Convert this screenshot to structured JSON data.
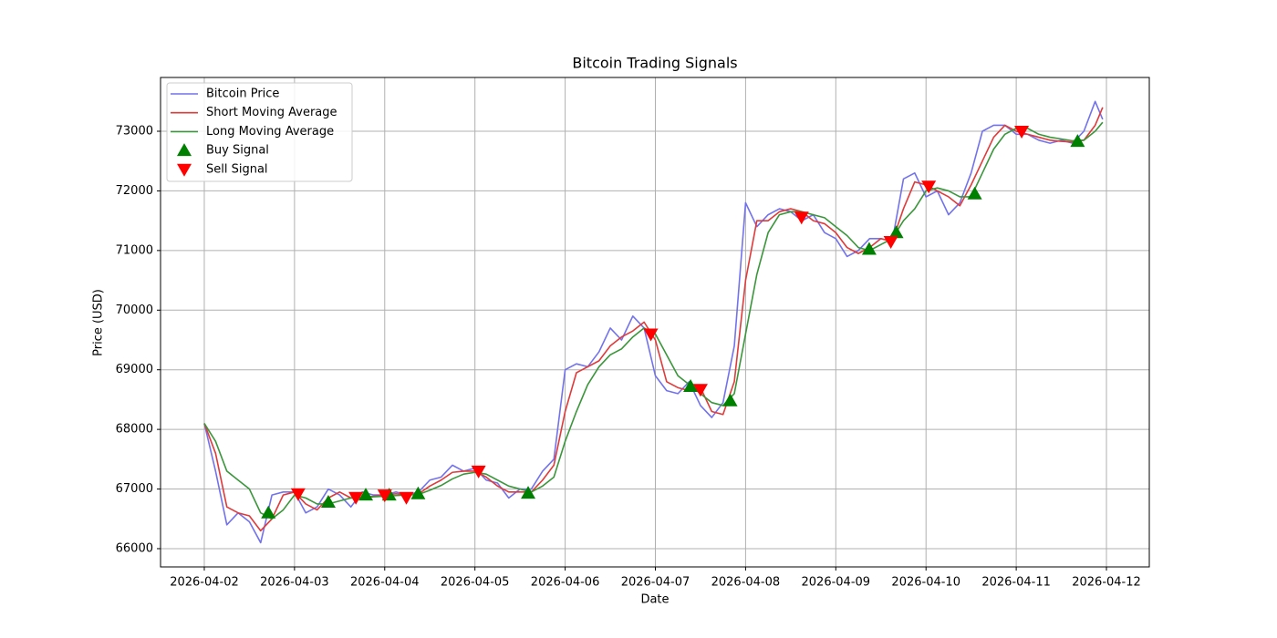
{
  "chart_data": {
    "type": "line",
    "title": "Bitcoin Trading Signals",
    "x_label": "Date",
    "y_label": "Price (USD)",
    "x": [
      0,
      0.125,
      0.25,
      0.375,
      0.5,
      0.625,
      0.75,
      0.875,
      1,
      1.125,
      1.25,
      1.375,
      1.5,
      1.625,
      1.75,
      1.875,
      2,
      2.125,
      2.25,
      2.375,
      2.5,
      2.625,
      2.75,
      2.875,
      3,
      3.125,
      3.25,
      3.375,
      3.5,
      3.625,
      3.75,
      3.875,
      4,
      4.125,
      4.25,
      4.375,
      4.5,
      4.625,
      4.75,
      4.875,
      5,
      5.125,
      5.25,
      5.375,
      5.5,
      5.625,
      5.75,
      5.875,
      6,
      6.125,
      6.25,
      6.375,
      6.5,
      6.625,
      6.75,
      6.875,
      7,
      7.125,
      7.25,
      7.375,
      7.5,
      7.625,
      7.75,
      7.875,
      8,
      8.125,
      8.25,
      8.375,
      8.5,
      8.625,
      8.75,
      8.875,
      9,
      9.125,
      9.25,
      9.375,
      9.5,
      9.625,
      9.75,
      9.875,
      9.958
    ],
    "series": [
      {
        "name": "Bitcoin Price",
        "color": "#7272ec",
        "values": [
          68100,
          67300,
          66400,
          66600,
          66450,
          66100,
          66900,
          66950,
          66950,
          66600,
          66700,
          67000,
          66900,
          66700,
          66950,
          66900,
          66900,
          66950,
          66900,
          66950,
          67150,
          67200,
          67400,
          67300,
          67350,
          67150,
          67100,
          66850,
          67000,
          67000,
          67300,
          67500,
          69000,
          69100,
          69050,
          69300,
          69700,
          69500,
          69900,
          69700,
          68900,
          68650,
          68600,
          68800,
          68400,
          68200,
          68450,
          69400,
          71800,
          71400,
          71600,
          71700,
          71650,
          71500,
          71600,
          71300,
          71200,
          70900,
          71000,
          71200,
          71200,
          71150,
          72200,
          72300,
          71900,
          72000,
          71600,
          71800,
          72300,
          73000,
          73100,
          73100,
          72950,
          72950,
          72850,
          72800,
          72850,
          72800,
          73000,
          73500,
          73200
        ]
      },
      {
        "name": "Short Moving Average",
        "color": "#e03a3a",
        "values": [
          68100,
          67600,
          66700,
          66600,
          66550,
          66300,
          66500,
          66900,
          66950,
          66750,
          66650,
          66850,
          66950,
          66850,
          66850,
          66880,
          66900,
          66920,
          66900,
          66920,
          67050,
          67150,
          67280,
          67300,
          67300,
          67200,
          67050,
          66950,
          66950,
          66950,
          67150,
          67400,
          68300,
          68950,
          69050,
          69150,
          69400,
          69550,
          69650,
          69800,
          69500,
          68800,
          68700,
          68650,
          68700,
          68300,
          68250,
          68800,
          70500,
          71500,
          71500,
          71650,
          71700,
          71650,
          71500,
          71450,
          71300,
          71050,
          70950,
          71050,
          71200,
          71150,
          71700,
          72150,
          72100,
          72000,
          71900,
          71750,
          72100,
          72500,
          72900,
          73100,
          73000,
          72950,
          72900,
          72850,
          72830,
          72820,
          72850,
          73100,
          73400
        ]
      },
      {
        "name": "Long Moving Average",
        "color": "#3a963a",
        "values": [
          68100,
          67800,
          67300,
          67150,
          67000,
          66600,
          66500,
          66650,
          66900,
          66850,
          66750,
          66750,
          66800,
          66850,
          66850,
          66870,
          66880,
          66890,
          66900,
          66910,
          66980,
          67060,
          67170,
          67250,
          67280,
          67250,
          67150,
          67050,
          67000,
          66950,
          67050,
          67200,
          67800,
          68300,
          68750,
          69050,
          69250,
          69350,
          69550,
          69700,
          69600,
          69250,
          68900,
          68750,
          68600,
          68450,
          68400,
          68600,
          69600,
          70600,
          71300,
          71600,
          71650,
          71650,
          71600,
          71550,
          71400,
          71250,
          71050,
          71000,
          71100,
          71200,
          71500,
          71700,
          72000,
          72050,
          72000,
          71900,
          71900,
          72300,
          72700,
          72950,
          73050,
          73050,
          72950,
          72900,
          72870,
          72840,
          72850,
          73000,
          73150
        ]
      },
      {
        "name": "Buy Signal",
        "color": "#008000",
        "marker": "^",
        "x": [
          0.71,
          1.375,
          1.79,
          2.05,
          2.37,
          3.59,
          5.39,
          5.83,
          7.37,
          7.67,
          8.54,
          9.68
        ],
        "values": [
          66600,
          66780,
          66900,
          66900,
          66920,
          66930,
          68720,
          68480,
          71020,
          71300,
          71950,
          72830
        ]
      },
      {
        "name": "Sell Signal",
        "color": "#ff0000",
        "marker": "v",
        "x": [
          1.04,
          1.68,
          2.0,
          2.24,
          3.04,
          4.95,
          5.5,
          6.62,
          7.61,
          8.03,
          9.06
        ],
        "values": [
          66920,
          66860,
          66900,
          66860,
          67300,
          69600,
          68670,
          71560,
          71150,
          72080,
          73000
        ]
      }
    ],
    "xlim": [
      -0.485,
      10.475
    ],
    "xticks": [
      {
        "value": 0,
        "label": "2026-04-02"
      },
      {
        "value": 1,
        "label": "2026-04-03"
      },
      {
        "value": 2,
        "label": "2026-04-04"
      },
      {
        "value": 3,
        "label": "2026-04-05"
      },
      {
        "value": 4,
        "label": "2026-04-06"
      },
      {
        "value": 5,
        "label": "2026-04-07"
      },
      {
        "value": 6,
        "label": "2026-04-08"
      },
      {
        "value": 7,
        "label": "2026-04-09"
      },
      {
        "value": 8,
        "label": "2026-04-10"
      },
      {
        "value": 9,
        "label": "2026-04-11"
      },
      {
        "value": 10,
        "label": "2026-04-12"
      }
    ],
    "ylim": [
      65694,
      73902
    ],
    "yticks": [
      66000,
      67000,
      68000,
      69000,
      70000,
      71000,
      72000,
      73000
    ],
    "grid": true,
    "legend": "upper-left"
  }
}
